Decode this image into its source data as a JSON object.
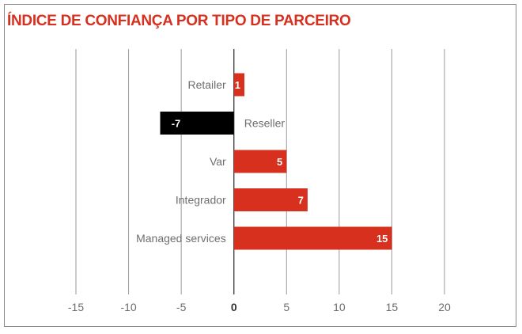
{
  "chart_data": {
    "type": "bar",
    "orientation": "horizontal",
    "title": "ÍNDICE DE CONFIANÇA POR TIPO DE PARCEIRO",
    "categories": [
      "Retailer",
      "Reseller",
      "Var",
      "Integrador",
      "Managed services"
    ],
    "values": [
      1,
      -7,
      5,
      7,
      15
    ],
    "value_labels": [
      "1",
      "-7",
      "5",
      "7",
      "15"
    ],
    "xlim": [
      -15,
      20
    ],
    "xticks": [
      -15,
      -10,
      -5,
      0,
      5,
      10,
      15,
      20
    ],
    "xtick_labels": [
      "-15",
      "-10",
      "-5",
      "0",
      "5",
      "10",
      "15",
      "20"
    ],
    "xlabel": "",
    "ylabel": "",
    "grid": "vertical",
    "colors": {
      "positive": "#d7301f",
      "negative": "#000000",
      "title": "#d7301f",
      "grid": "#9a9a9a"
    }
  }
}
